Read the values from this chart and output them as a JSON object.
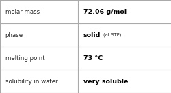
{
  "rows": [
    {
      "label": "molar mass",
      "value": "72.06 g/mol",
      "annotation": null
    },
    {
      "label": "phase",
      "value": "solid",
      "annotation": "at STP"
    },
    {
      "label": "melting point",
      "value": "73 °C",
      "annotation": null
    },
    {
      "label": "solubility in water",
      "value": "very soluble",
      "annotation": null
    }
  ],
  "col_split": 0.455,
  "background_color": "#ffffff",
  "border_color": "#aaaaaa",
  "label_fontsize": 6.2,
  "value_fontsize": 6.8,
  "annotation_fontsize": 4.8,
  "label_color": "#222222",
  "value_color": "#000000",
  "fig_width": 2.51,
  "fig_height": 1.36,
  "dpi": 100
}
